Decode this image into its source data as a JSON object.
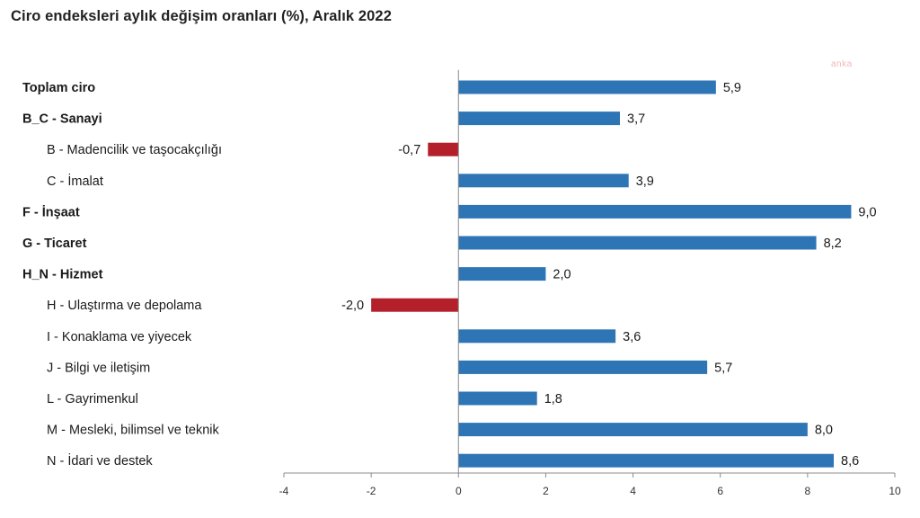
{
  "title": "Ciro endeksleri aylık değişim oranları (%), Aralık 2022",
  "watermark": "anka",
  "colors": {
    "positive": "#2e75b6",
    "negative": "#b4202a",
    "axis": "#8c8c8c"
  },
  "chart_data": {
    "type": "bar",
    "orientation": "horizontal",
    "title": "Ciro endeksleri aylık değişim oranları (%), Aralık 2022",
    "xlabel": "",
    "ylabel": "",
    "xlim": [
      -4,
      10
    ],
    "xticks": [
      -4,
      -2,
      0,
      2,
      4,
      6,
      8,
      10
    ],
    "grid": false,
    "legend": "none",
    "categories": [
      "Toplam ciro",
      "B_C - Sanayi",
      "B - Madencilik ve taşocakçılığı",
      "C - İmalat",
      "F - İnşaat",
      "G - Ticaret",
      "H_N - Hizmet",
      "H - Ulaştırma ve depolama",
      "I - Konaklama ve yiyecek",
      "J - Bilgi ve iletişim",
      "L - Gayrimenkul",
      "M - Mesleki, bilimsel ve teknik",
      "N - İdari ve destek"
    ],
    "category_bold": [
      true,
      true,
      false,
      false,
      true,
      true,
      true,
      false,
      false,
      false,
      false,
      false,
      false
    ],
    "values": [
      5.9,
      3.7,
      -0.7,
      3.9,
      9.0,
      8.2,
      2.0,
      -2.0,
      3.6,
      5.7,
      1.8,
      8.0,
      8.6
    ],
    "value_labels": [
      "5,9",
      "3,7",
      "-0,7",
      "3,9",
      "9,0",
      "8,2",
      "2,0",
      "-2,0",
      "3,6",
      "5,7",
      "1,8",
      "8,0",
      "8,6"
    ]
  }
}
